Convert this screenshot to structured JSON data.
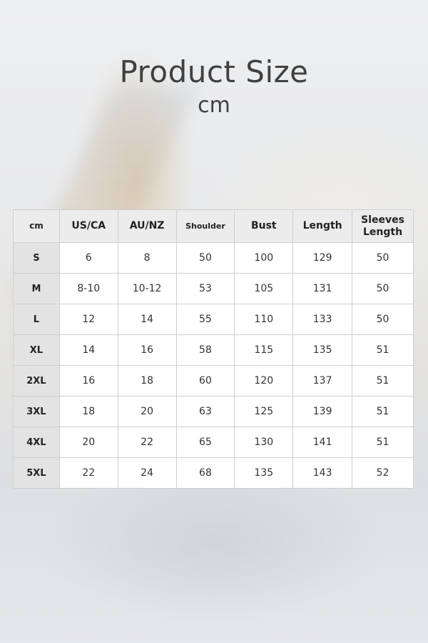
{
  "header": {
    "title": "Product Size",
    "subtitle": "cm"
  },
  "table": {
    "columns": [
      "cm",
      "US/CA",
      "AU/NZ",
      "Shoulder",
      "Bust",
      "Length",
      "Sleeves Length"
    ],
    "rows": [
      [
        "S",
        "6",
        "8",
        "50",
        "100",
        "129",
        "50"
      ],
      [
        "M",
        "8-10",
        "10-12",
        "53",
        "105",
        "131",
        "50"
      ],
      [
        "L",
        "12",
        "14",
        "55",
        "110",
        "133",
        "50"
      ],
      [
        "XL",
        "14",
        "16",
        "58",
        "115",
        "135",
        "51"
      ],
      [
        "2XL",
        "16",
        "18",
        "60",
        "120",
        "137",
        "51"
      ],
      [
        "3XL",
        "18",
        "20",
        "63",
        "125",
        "139",
        "51"
      ],
      [
        "4XL",
        "20",
        "22",
        "65",
        "130",
        "141",
        "51"
      ],
      [
        "5XL",
        "22",
        "24",
        "68",
        "135",
        "143",
        "52"
      ]
    ]
  }
}
